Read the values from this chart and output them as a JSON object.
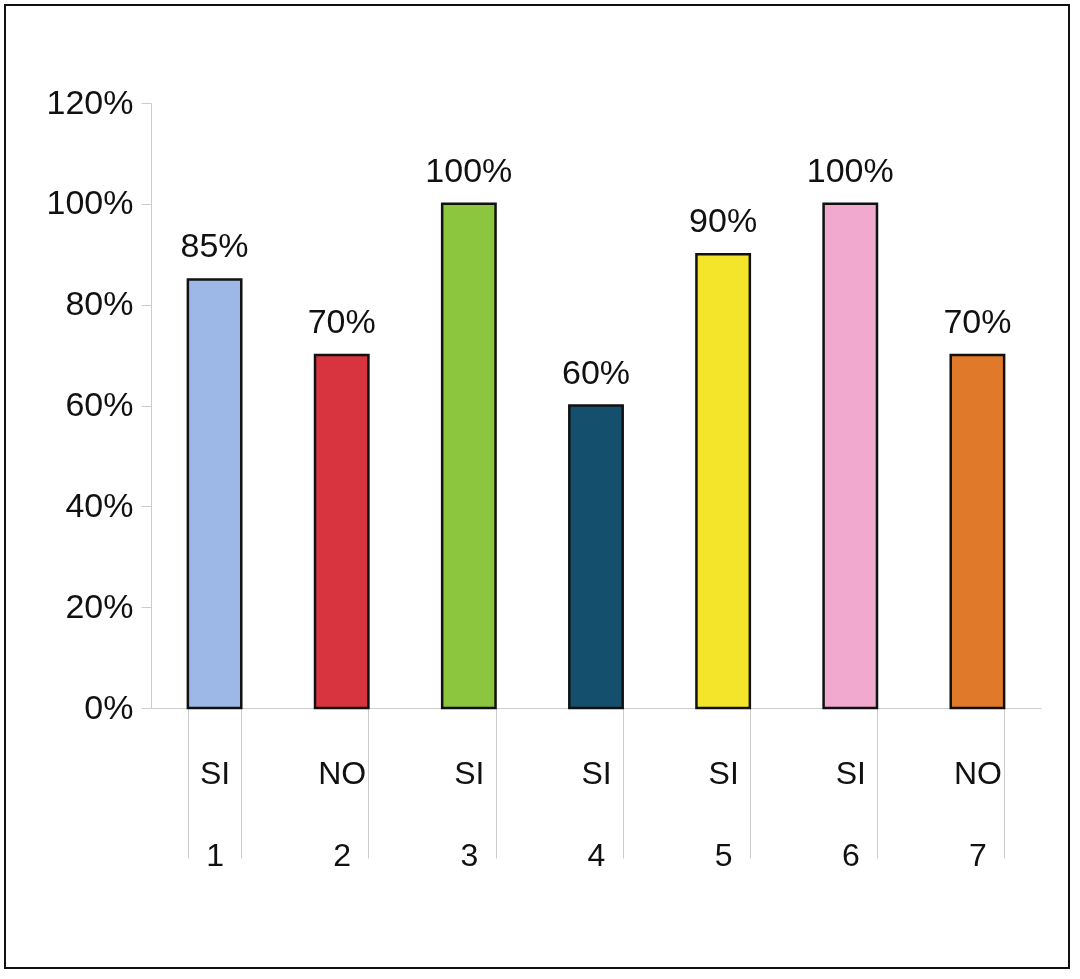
{
  "chart_data": {
    "type": "bar",
    "categories": [
      "SI\n1",
      "NO\n2",
      "SI\n3",
      "SI\n4",
      "SI\n5",
      "SI\n6",
      "NO\n7"
    ],
    "values": [
      85,
      70,
      100,
      60,
      90,
      100,
      70
    ],
    "colors": [
      "#9db8e6",
      "#d8343f",
      "#8cc63f",
      "#14506e",
      "#f5e52a",
      "#f1a9cf",
      "#e07a2a"
    ],
    "value_labels": [
      "85%",
      "70%",
      "100%",
      "60%",
      "90%",
      "100%",
      "70%"
    ],
    "ylim": [
      0,
      120
    ],
    "yticks": [
      {
        "value": 0,
        "label": "0%"
      },
      {
        "value": 20,
        "label": "20%"
      },
      {
        "value": 40,
        "label": "40%"
      },
      {
        "value": 60,
        "label": "60%"
      },
      {
        "value": 80,
        "label": "80%"
      },
      {
        "value": 100,
        "label": "100%"
      },
      {
        "value": 120,
        "label": "120%"
      }
    ],
    "grid": false
  }
}
